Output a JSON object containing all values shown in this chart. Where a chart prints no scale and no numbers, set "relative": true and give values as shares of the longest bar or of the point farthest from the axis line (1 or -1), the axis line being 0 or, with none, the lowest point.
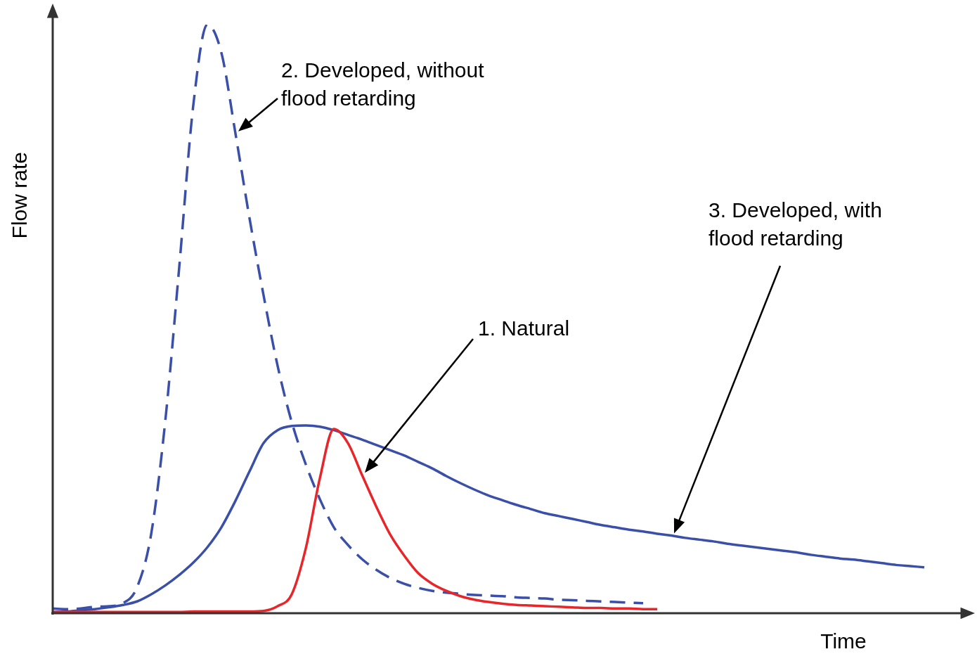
{
  "chart_data": {
    "type": "line",
    "relative": true,
    "xlabel": "Time",
    "ylabel": "Flow rate",
    "marker": "none",
    "categories": [
      null,
      null,
      null,
      null,
      null,
      null,
      null,
      null,
      null,
      null,
      null,
      null,
      null,
      null,
      null,
      null,
      null,
      null,
      null,
      null,
      null,
      null,
      null,
      null,
      null,
      null,
      null,
      null,
      null,
      null,
      null,
      null,
      null,
      null,
      null,
      null,
      null,
      null,
      null,
      null,
      null,
      null,
      null,
      null,
      null,
      null,
      null,
      null,
      null,
      null,
      null,
      null,
      null,
      null,
      null,
      null,
      null,
      null,
      null,
      null,
      null,
      null,
      null,
      null,
      null,
      null
    ],
    "series": [
      {
        "name": "1. Natural",
        "color": "#e8262a",
        "values": [
          0.002,
          0.002,
          0.002,
          0.002,
          0.002,
          0.002,
          0.002,
          0.002,
          0.002,
          0.002,
          0.003,
          0.003,
          0.003,
          0.003,
          0.003,
          0.004,
          0.012,
          0.032,
          0.11,
          0.229,
          0.313,
          0.289,
          0.235,
          0.182,
          0.134,
          0.098,
          0.068,
          0.05,
          0.038,
          0.029,
          0.023,
          0.019,
          0.016,
          0.014,
          0.013,
          0.012,
          0.011,
          0.01,
          0.009,
          0.009,
          0.008,
          0.008,
          0.007,
          0.007,
          null,
          null,
          null,
          null,
          null,
          null,
          null,
          null,
          null,
          null,
          null,
          null,
          null,
          null,
          null,
          null,
          null,
          null,
          null,
          null,
          null,
          null
        ]
      },
      {
        "name": "2. Developed, without flood retarding",
        "color": "#3a4fa8",
        "line_style": "dashed",
        "values": [
          0.008,
          0.007,
          0.008,
          0.011,
          0.012,
          0.017,
          0.044,
          0.134,
          0.325,
          0.588,
          0.863,
          1,
          0.952,
          0.815,
          0.671,
          0.54,
          0.42,
          0.325,
          0.253,
          0.194,
          0.146,
          0.116,
          0.092,
          0.074,
          0.06,
          0.05,
          0.043,
          0.038,
          0.035,
          0.033,
          0.031,
          0.03,
          0.029,
          0.027,
          0.026,
          0.025,
          0.023,
          0.022,
          0.021,
          0.02,
          0.019,
          0.018,
          0.017,
          null,
          null,
          null,
          null,
          null,
          null,
          null,
          null,
          null,
          null,
          null,
          null,
          null,
          null,
          null,
          null,
          null,
          null,
          null,
          null,
          null,
          null,
          null
        ]
      },
      {
        "name": "3. Developed, with flood retarding",
        "color": "#3a4fa8",
        "values": [
          0.002,
          0.003,
          0.005,
          0.007,
          0.01,
          0.014,
          0.02,
          0.032,
          0.047,
          0.065,
          0.086,
          0.112,
          0.146,
          0.191,
          0.241,
          0.289,
          0.311,
          0.318,
          0.319,
          0.317,
          0.311,
          0.303,
          0.295,
          0.286,
          0.277,
          0.268,
          0.257,
          0.246,
          0.233,
          0.221,
          0.21,
          0.2,
          0.192,
          0.184,
          0.177,
          0.17,
          0.165,
          0.16,
          0.155,
          0.15,
          0.146,
          0.142,
          0.139,
          0.135,
          0.132,
          0.128,
          0.125,
          0.122,
          0.118,
          0.115,
          0.112,
          0.109,
          0.106,
          0.103,
          0.099,
          0.096,
          0.093,
          0.091,
          0.088,
          0.085,
          0.082,
          0.08,
          0.078,
          null,
          null,
          null
        ]
      }
    ]
  }
}
